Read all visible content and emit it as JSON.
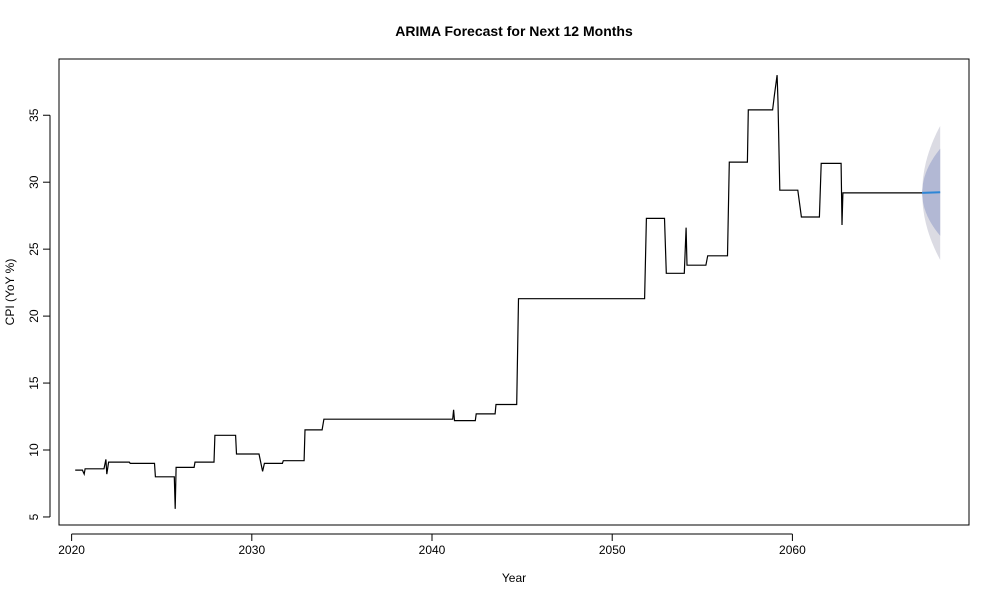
{
  "chart_data": {
    "type": "line",
    "title": "ARIMA Forecast for Next 12 Months",
    "xlabel": "Year",
    "ylabel": "CPI (YoY %)",
    "xlim": [
      2019.3,
      2069.8
    ],
    "ylim": [
      4.4,
      39.2
    ],
    "x_ticks": [
      2020,
      2030,
      2040,
      2050,
      2060
    ],
    "y_ticks": [
      5,
      10,
      15,
      20,
      25,
      30,
      35
    ],
    "colors": {
      "history": "#000000",
      "forecast": "#2d86d6",
      "band_95": "#dbdbe3",
      "band_80": "#b2b8d4"
    },
    "series": [
      {
        "name": "history",
        "points": [
          [
            2020.2,
            8.5
          ],
          [
            2020.6,
            8.5
          ],
          [
            2020.7,
            8.2
          ],
          [
            2020.75,
            8.6
          ],
          [
            2021.8,
            8.6
          ],
          [
            2021.9,
            9.3
          ],
          [
            2021.95,
            8.2
          ],
          [
            2022.05,
            9.1
          ],
          [
            2023.2,
            9.1
          ],
          [
            2023.25,
            9.0
          ],
          [
            2024.6,
            9.0
          ],
          [
            2024.65,
            8.0
          ],
          [
            2025.7,
            8.0
          ],
          [
            2025.75,
            5.6
          ],
          [
            2025.8,
            8.7
          ],
          [
            2026.8,
            8.7
          ],
          [
            2026.85,
            9.1
          ],
          [
            2027.9,
            9.1
          ],
          [
            2027.95,
            11.1
          ],
          [
            2029.1,
            11.1
          ],
          [
            2029.15,
            9.7
          ],
          [
            2030.4,
            9.7
          ],
          [
            2030.6,
            8.4
          ],
          [
            2030.7,
            9.0
          ],
          [
            2031.7,
            9.0
          ],
          [
            2031.75,
            9.2
          ],
          [
            2032.9,
            9.2
          ],
          [
            2032.95,
            11.5
          ],
          [
            2033.9,
            11.5
          ],
          [
            2034.0,
            12.3
          ],
          [
            2041.15,
            12.3
          ],
          [
            2041.2,
            13.0
          ],
          [
            2041.25,
            12.2
          ],
          [
            2042.4,
            12.2
          ],
          [
            2042.45,
            12.7
          ],
          [
            2043.5,
            12.7
          ],
          [
            2043.55,
            13.4
          ],
          [
            2044.7,
            13.4
          ],
          [
            2044.8,
            21.3
          ],
          [
            2051.8,
            21.3
          ],
          [
            2051.9,
            27.3
          ],
          [
            2052.9,
            27.3
          ],
          [
            2053.0,
            23.2
          ],
          [
            2054.0,
            23.2
          ],
          [
            2054.1,
            26.6
          ],
          [
            2054.15,
            23.8
          ],
          [
            2055.2,
            23.8
          ],
          [
            2055.3,
            24.5
          ],
          [
            2056.4,
            24.5
          ],
          [
            2056.5,
            31.5
          ],
          [
            2057.5,
            31.5
          ],
          [
            2057.55,
            35.4
          ],
          [
            2058.9,
            35.4
          ],
          [
            2059.0,
            36.5
          ],
          [
            2059.15,
            38.0
          ],
          [
            2059.2,
            36.0
          ],
          [
            2059.3,
            29.4
          ],
          [
            2060.3,
            29.4
          ],
          [
            2060.5,
            27.4
          ],
          [
            2061.5,
            27.4
          ],
          [
            2061.6,
            31.4
          ],
          [
            2062.7,
            31.4
          ],
          [
            2062.75,
            26.8
          ],
          [
            2062.8,
            29.2
          ],
          [
            2067.2,
            29.2
          ]
        ]
      },
      {
        "name": "forecast",
        "points": [
          [
            2067.2,
            29.2
          ],
          [
            2068.2,
            29.25
          ]
        ]
      }
    ],
    "forecast_bands": [
      {
        "level": 95,
        "x_start": 2067.2,
        "x_end": 2068.2,
        "lower_end": 24.2,
        "upper_end": 34.2
      },
      {
        "level": 80,
        "x_start": 2067.2,
        "x_end": 2068.2,
        "lower_end": 26.0,
        "upper_end": 32.5
      }
    ]
  }
}
